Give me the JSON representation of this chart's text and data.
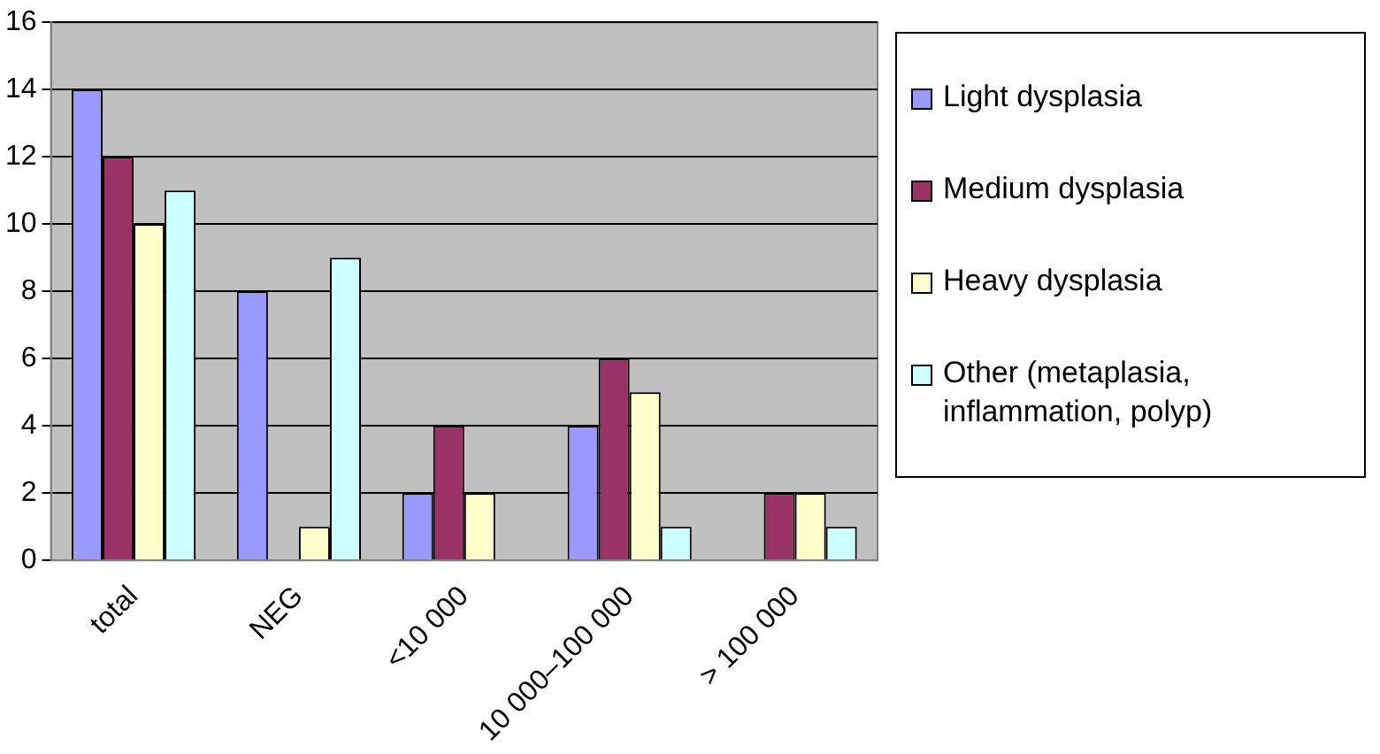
{
  "chart_data": {
    "type": "bar",
    "categories": [
      "total",
      "NEG",
      "<10 000",
      "10 000–100 000",
      "> 100 000"
    ],
    "series": [
      {
        "name": "Light dysplasia",
        "color": "#9999ff",
        "values": [
          14,
          8,
          2,
          4,
          0
        ]
      },
      {
        "name": "Medium dysplasia",
        "color": "#993366",
        "values": [
          12,
          0,
          4,
          6,
          2
        ]
      },
      {
        "name": "Heavy dysplasia",
        "color": "#ffffcc",
        "values": [
          10,
          1,
          2,
          5,
          2
        ]
      },
      {
        "name": "Other (metaplasia, inflammation, polyp)",
        "color": "#ccffff",
        "values": [
          11,
          9,
          0,
          1,
          1
        ]
      }
    ],
    "ylim": [
      0,
      16
    ],
    "yticks": [
      0,
      2,
      4,
      6,
      8,
      10,
      12,
      14,
      16
    ],
    "grid": "y",
    "legend": "right"
  }
}
